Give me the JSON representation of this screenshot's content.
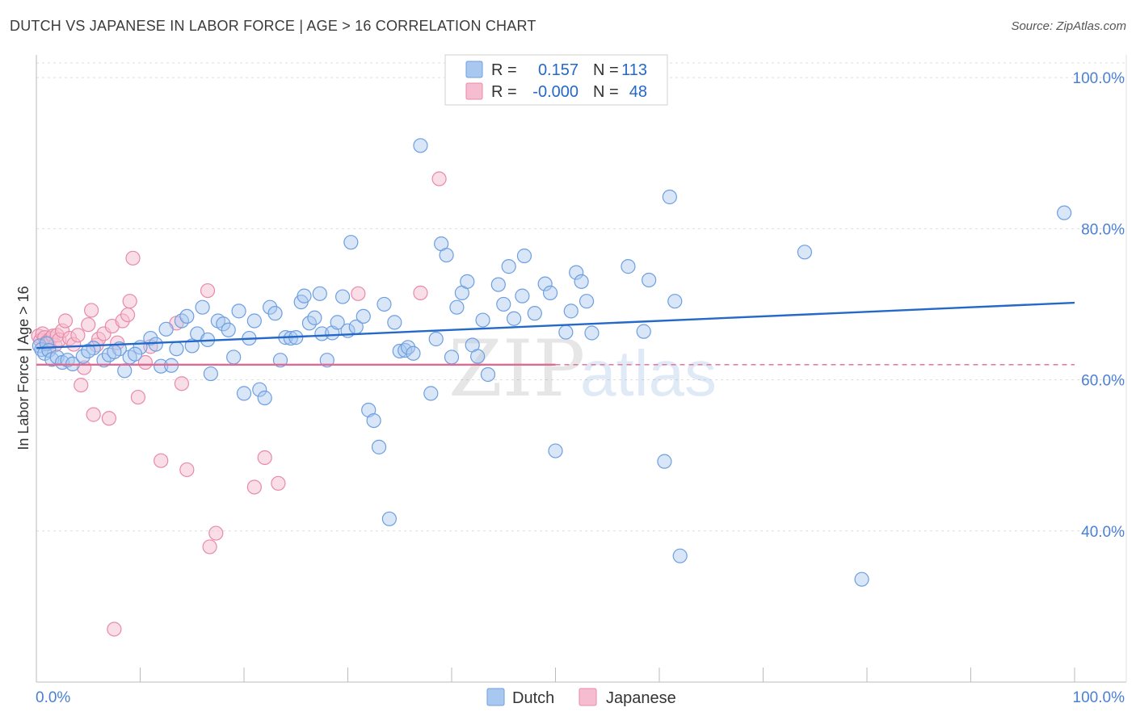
{
  "title": "DUTCH VS JAPANESE IN LABOR FORCE | AGE > 16 CORRELATION CHART",
  "source": "Source: ZipAtlas.com",
  "watermark": {
    "part1": "ZIP",
    "part2": "atlas"
  },
  "colors": {
    "dutch_fill": "#a9c8f0",
    "dutch_stroke": "#6d9fe0",
    "dutch_line": "#2468c9",
    "japanese_fill": "#f6bdd0",
    "japanese_stroke": "#e88aa9",
    "japanese_line": "#e06a93",
    "axis_text": "#4a7fd4",
    "grid": "#dddddd"
  },
  "legend_top": {
    "rows": [
      {
        "series": "Dutch",
        "r_label": "R =",
        "r_value": "0.157",
        "n_label": "N =",
        "n_value": "113"
      },
      {
        "series": "Japanese",
        "r_label": "R =",
        "r_value": "-0.000",
        "n_label": "N =",
        "n_value": "48"
      }
    ]
  },
  "legend_bottom": [
    "Dutch",
    "Japanese"
  ],
  "chart_data": {
    "type": "scatter",
    "title": "DUTCH VS JAPANESE IN LABOR FORCE | AGE > 16 CORRELATION CHART",
    "xlabel": "",
    "ylabel": "In Labor Force | Age > 16",
    "xlim": [
      0,
      100
    ],
    "ylim": [
      20,
      103
    ],
    "x_tick_labels": [
      {
        "value": 0,
        "label": "0.0%"
      },
      {
        "value": 100,
        "label": "100.0%"
      }
    ],
    "y_tick_labels": [
      {
        "value": 40,
        "label": "40.0%"
      },
      {
        "value": 60,
        "label": "60.0%"
      },
      {
        "value": 80,
        "label": "80.0%"
      },
      {
        "value": 100,
        "label": "100.0%"
      }
    ],
    "gridlines_y": [
      40,
      60,
      80,
      100
    ],
    "series": [
      {
        "name": "Dutch",
        "r": 0.157,
        "n": 113,
        "trend": {
          "x": [
            0,
            100
          ],
          "y": [
            64.2,
            70.2
          ],
          "style": "solid"
        },
        "points": [
          [
            0.3,
            64.5
          ],
          [
            0.5,
            64.0
          ],
          [
            0.8,
            63.5
          ],
          [
            1.0,
            64.8
          ],
          [
            1.2,
            63.9
          ],
          [
            1.5,
            62.7
          ],
          [
            2.0,
            63.0
          ],
          [
            2.5,
            62.3
          ],
          [
            3.0,
            62.6
          ],
          [
            3.5,
            62.1
          ],
          [
            4.5,
            63.1
          ],
          [
            5.5,
            64.2
          ],
          [
            6.5,
            62.6
          ],
          [
            7.0,
            63.3
          ],
          [
            8.0,
            64.1
          ],
          [
            8.5,
            61.2
          ],
          [
            9.0,
            63.0
          ],
          [
            10.0,
            64.3
          ],
          [
            11.0,
            65.5
          ],
          [
            11.5,
            64.7
          ],
          [
            12.0,
            61.8
          ],
          [
            12.5,
            66.7
          ],
          [
            13.0,
            61.9
          ],
          [
            13.5,
            64.1
          ],
          [
            14.0,
            67.8
          ],
          [
            14.5,
            68.4
          ],
          [
            15.0,
            64.5
          ],
          [
            15.5,
            66.1
          ],
          [
            16.0,
            69.6
          ],
          [
            16.5,
            65.3
          ],
          [
            16.8,
            60.8
          ],
          [
            17.5,
            67.8
          ],
          [
            18.0,
            67.4
          ],
          [
            18.5,
            66.6
          ],
          [
            19.0,
            63.0
          ],
          [
            19.5,
            69.1
          ],
          [
            20.0,
            58.2
          ],
          [
            20.5,
            65.5
          ],
          [
            21.0,
            67.8
          ],
          [
            21.5,
            58.7
          ],
          [
            22.0,
            57.6
          ],
          [
            22.5,
            69.6
          ],
          [
            23.0,
            68.8
          ],
          [
            23.5,
            62.6
          ],
          [
            24.0,
            65.6
          ],
          [
            24.5,
            65.5
          ],
          [
            25.0,
            65.6
          ],
          [
            25.5,
            70.3
          ],
          [
            25.8,
            71.1
          ],
          [
            26.3,
            67.5
          ],
          [
            26.8,
            68.2
          ],
          [
            27.3,
            71.4
          ],
          [
            27.5,
            66.1
          ],
          [
            28.0,
            62.6
          ],
          [
            28.5,
            66.2
          ],
          [
            29.0,
            67.6
          ],
          [
            29.5,
            71.0
          ],
          [
            30.0,
            66.5
          ],
          [
            30.3,
            78.2
          ],
          [
            30.8,
            67.0
          ],
          [
            31.5,
            68.4
          ],
          [
            32.0,
            56.0
          ],
          [
            32.5,
            54.6
          ],
          [
            33.0,
            51.1
          ],
          [
            33.5,
            70.0
          ],
          [
            34.0,
            41.6
          ],
          [
            34.5,
            67.6
          ],
          [
            35.0,
            63.8
          ],
          [
            35.5,
            63.9
          ],
          [
            35.8,
            64.3
          ],
          [
            36.3,
            63.5
          ],
          [
            37.0,
            91.0
          ],
          [
            38.0,
            58.2
          ],
          [
            38.5,
            65.4
          ],
          [
            39.0,
            78.0
          ],
          [
            39.5,
            76.5
          ],
          [
            40.0,
            63.0
          ],
          [
            40.5,
            69.6
          ],
          [
            41.0,
            71.5
          ],
          [
            41.5,
            73.0
          ],
          [
            42.0,
            64.6
          ],
          [
            42.5,
            63.1
          ],
          [
            43.0,
            67.9
          ],
          [
            43.5,
            60.7
          ],
          [
            44.5,
            72.6
          ],
          [
            45.0,
            70.0
          ],
          [
            45.5,
            75.0
          ],
          [
            46.0,
            68.1
          ],
          [
            47.0,
            76.4
          ],
          [
            46.8,
            71.1
          ],
          [
            48.0,
            68.8
          ],
          [
            49.0,
            72.7
          ],
          [
            49.5,
            71.5
          ],
          [
            50.0,
            50.6
          ],
          [
            51.0,
            66.3
          ],
          [
            51.5,
            69.1
          ],
          [
            52.0,
            74.2
          ],
          [
            52.5,
            73.0
          ],
          [
            53.0,
            70.4
          ],
          [
            53.5,
            66.2
          ],
          [
            57.0,
            75.0
          ],
          [
            58.5,
            66.4
          ],
          [
            59.0,
            73.2
          ],
          [
            60.5,
            49.2
          ],
          [
            61.0,
            84.2
          ],
          [
            61.5,
            70.4
          ],
          [
            62.0,
            36.7
          ],
          [
            74.0,
            76.9
          ],
          [
            79.5,
            33.6
          ],
          [
            99.0,
            82.1
          ],
          [
            5.0,
            63.8
          ],
          [
            9.5,
            63.4
          ],
          [
            7.5,
            63.7
          ]
        ]
      },
      {
        "name": "Japanese",
        "r": -0.0,
        "n": 48,
        "trend": {
          "x": [
            0,
            100
          ],
          "y": [
            62.0,
            62.0
          ],
          "solid_until": 50,
          "style": "solid-then-dashed"
        },
        "points": [
          [
            0.2,
            65.8
          ],
          [
            0.4,
            65.2
          ],
          [
            0.6,
            66.1
          ],
          [
            0.8,
            65.6
          ],
          [
            1.0,
            65.0
          ],
          [
            1.2,
            64.8
          ],
          [
            1.4,
            65.5
          ],
          [
            1.6,
            65.8
          ],
          [
            1.8,
            64.6
          ],
          [
            2.0,
            65.9
          ],
          [
            2.2,
            65.3
          ],
          [
            2.5,
            66.5
          ],
          [
            2.8,
            67.8
          ],
          [
            3.2,
            65.5
          ],
          [
            3.6,
            64.7
          ],
          [
            4.0,
            65.9
          ],
          [
            4.3,
            59.3
          ],
          [
            4.6,
            61.6
          ],
          [
            5.0,
            67.3
          ],
          [
            5.3,
            69.2
          ],
          [
            5.5,
            55.4
          ],
          [
            5.8,
            64.6
          ],
          [
            6.0,
            65.4
          ],
          [
            6.5,
            66.1
          ],
          [
            7.0,
            54.9
          ],
          [
            7.3,
            67.1
          ],
          [
            7.5,
            27.0
          ],
          [
            7.8,
            64.9
          ],
          [
            8.3,
            67.8
          ],
          [
            8.8,
            68.6
          ],
          [
            9.0,
            70.4
          ],
          [
            9.3,
            76.1
          ],
          [
            9.8,
            57.7
          ],
          [
            10.5,
            62.3
          ],
          [
            11.0,
            64.4
          ],
          [
            12.0,
            49.3
          ],
          [
            13.5,
            67.5
          ],
          [
            14.0,
            59.5
          ],
          [
            14.5,
            48.1
          ],
          [
            16.5,
            71.8
          ],
          [
            16.7,
            37.9
          ],
          [
            17.3,
            39.7
          ],
          [
            21.0,
            45.8
          ],
          [
            22.0,
            49.7
          ],
          [
            23.3,
            46.3
          ],
          [
            31.0,
            71.4
          ],
          [
            37.0,
            71.5
          ],
          [
            38.8,
            86.6
          ]
        ]
      }
    ]
  }
}
